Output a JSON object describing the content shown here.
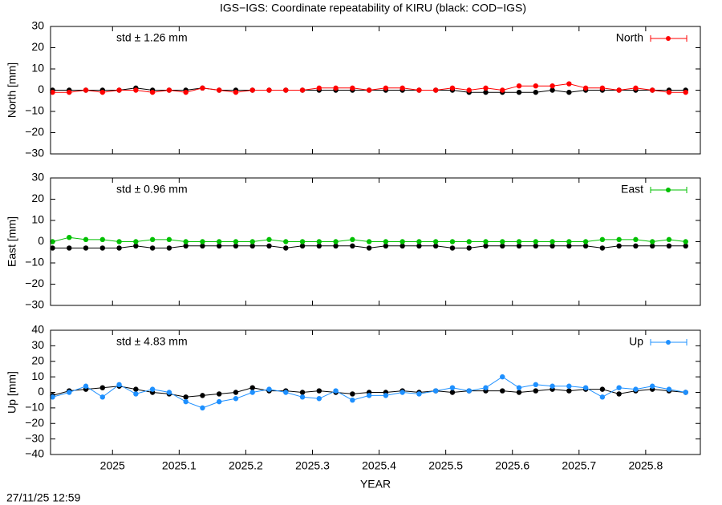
{
  "title": "IGS−IGS: Coordinate repeatability of KIRU (black: COD−IGS)",
  "timestamp": "27/11/25 12:59",
  "chart_data": [
    {
      "type": "line",
      "ylabel": "North [mm]",
      "annotation": "std ± 1.26 mm",
      "ylim": [
        -30,
        30
      ],
      "yticks": [
        {
          "value": -30,
          "label": "−30"
        },
        {
          "value": -20,
          "label": "−20"
        },
        {
          "value": -10,
          "label": "−10"
        },
        0,
        10,
        20,
        30
      ],
      "xlim": [
        2024.907,
        2025.882
      ],
      "x": [
        2024.91,
        2024.935,
        2024.96,
        2024.985,
        2025.01,
        2025.035,
        2025.06,
        2025.085,
        2025.11,
        2025.135,
        2025.16,
        2025.185,
        2025.21,
        2025.235,
        2025.26,
        2025.285,
        2025.31,
        2025.335,
        2025.36,
        2025.385,
        2025.41,
        2025.435,
        2025.46,
        2025.485,
        2025.51,
        2025.535,
        2025.56,
        2025.585,
        2025.61,
        2025.635,
        2025.66,
        2025.685,
        2025.71,
        2025.735,
        2025.76,
        2025.785,
        2025.81,
        2025.835,
        2025.86
      ],
      "series": [
        {
          "color": "#000000",
          "values": [
            0,
            0,
            0,
            0,
            0,
            1,
            0,
            0,
            0,
            1,
            0,
            0,
            0,
            0,
            0,
            0,
            0,
            0,
            0,
            0,
            0,
            0,
            0,
            0,
            0,
            -1,
            -1,
            -1,
            -1,
            -1,
            0,
            -1,
            0,
            0,
            0,
            0,
            0,
            0,
            0
          ]
        },
        {
          "name": "North",
          "color": "#ff0000",
          "values": [
            -1,
            -1,
            0,
            -1,
            0,
            0,
            -1,
            0,
            -1,
            1,
            0,
            -1,
            0,
            0,
            0,
            0,
            1,
            1,
            1,
            0,
            1,
            1,
            0,
            0,
            1,
            0,
            1,
            0,
            2,
            2,
            2,
            3,
            1,
            1,
            0,
            1,
            0,
            -1,
            -1
          ]
        }
      ]
    },
    {
      "type": "line",
      "ylabel": "East [mm]",
      "annotation": "std ± 0.96 mm",
      "ylim": [
        -30,
        30
      ],
      "yticks": [
        {
          "value": -30,
          "label": "−30"
        },
        {
          "value": -20,
          "label": "−20"
        },
        {
          "value": -10,
          "label": "−10"
        },
        0,
        10,
        20,
        30
      ],
      "xlim": [
        2024.907,
        2025.882
      ],
      "x": [
        2024.91,
        2024.935,
        2024.96,
        2024.985,
        2025.01,
        2025.035,
        2025.06,
        2025.085,
        2025.11,
        2025.135,
        2025.16,
        2025.185,
        2025.21,
        2025.235,
        2025.26,
        2025.285,
        2025.31,
        2025.335,
        2025.36,
        2025.385,
        2025.41,
        2025.435,
        2025.46,
        2025.485,
        2025.51,
        2025.535,
        2025.56,
        2025.585,
        2025.61,
        2025.635,
        2025.66,
        2025.685,
        2025.71,
        2025.735,
        2025.76,
        2025.785,
        2025.81,
        2025.835,
        2025.86
      ],
      "series": [
        {
          "color": "#000000",
          "values": [
            -3,
            -3,
            -3,
            -3,
            -3,
            -2,
            -3,
            -3,
            -2,
            -2,
            -2,
            -2,
            -2,
            -2,
            -3,
            -2,
            -2,
            -2,
            -2,
            -3,
            -2,
            -2,
            -2,
            -2,
            -3,
            -3,
            -2,
            -2,
            -2,
            -2,
            -2,
            -2,
            -2,
            -3,
            -2,
            -2,
            -2,
            -2,
            -2
          ]
        },
        {
          "name": "East",
          "color": "#00c000",
          "values": [
            0,
            2,
            1,
            1,
            0,
            0,
            1,
            1,
            0,
            0,
            0,
            0,
            0,
            1,
            0,
            0,
            0,
            0,
            1,
            0,
            0,
            0,
            0,
            0,
            0,
            0,
            0,
            0,
            0,
            0,
            0,
            0,
            0,
            1,
            1,
            1,
            0,
            1,
            0
          ]
        }
      ]
    },
    {
      "type": "line",
      "ylabel": "Up [mm]",
      "annotation": "std ± 4.83 mm",
      "xlabel": "YEAR",
      "ylim": [
        -40,
        40
      ],
      "yticks": [
        {
          "value": -40,
          "label": "−40"
        },
        {
          "value": -30,
          "label": "−30"
        },
        {
          "value": -20,
          "label": "−20"
        },
        {
          "value": -10,
          "label": "−10"
        },
        0,
        10,
        20,
        30,
        40
      ],
      "xlim": [
        2024.907,
        2025.882
      ],
      "xticks": [
        2025,
        2025.1,
        2025.2,
        2025.3,
        2025.4,
        2025.5,
        2025.6,
        2025.7,
        2025.8
      ],
      "x": [
        2024.91,
        2024.935,
        2024.96,
        2024.985,
        2025.01,
        2025.035,
        2025.06,
        2025.085,
        2025.11,
        2025.135,
        2025.16,
        2025.185,
        2025.21,
        2025.235,
        2025.26,
        2025.285,
        2025.31,
        2025.335,
        2025.36,
        2025.385,
        2025.41,
        2025.435,
        2025.46,
        2025.485,
        2025.51,
        2025.535,
        2025.56,
        2025.585,
        2025.61,
        2025.635,
        2025.66,
        2025.685,
        2025.71,
        2025.735,
        2025.76,
        2025.785,
        2025.81,
        2025.835,
        2025.86
      ],
      "series": [
        {
          "color": "#000000",
          "values": [
            -2,
            1,
            2,
            3,
            4,
            2,
            0,
            -1,
            -3,
            -2,
            -1,
            0,
            3,
            1,
            1,
            0,
            1,
            0,
            -1,
            0,
            0,
            1,
            0,
            1,
            0,
            1,
            1,
            1,
            0,
            1,
            2,
            1,
            2,
            2,
            -1,
            1,
            2,
            1,
            0
          ]
        },
        {
          "name": "Up",
          "color": "#1e90ff",
          "values": [
            -3,
            0,
            4,
            -3,
            5,
            -1,
            2,
            0,
            -6,
            -10,
            -6,
            -4,
            0,
            2,
            0,
            -3,
            -4,
            1,
            -5,
            -2,
            -2,
            0,
            -1,
            1,
            3,
            1,
            3,
            10,
            3,
            5,
            4,
            4,
            3,
            -3,
            3,
            2,
            4,
            2,
            0
          ]
        }
      ]
    }
  ]
}
